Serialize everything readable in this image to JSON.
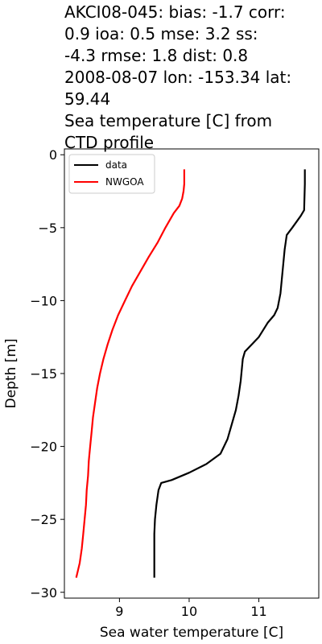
{
  "chart_data": {
    "type": "line",
    "title_lines": [
      "AKCI08-045: bias: -1.7  corr:",
      "0.9  ioa: 0.5  mse: 3.2  ss:",
      "-4.3  rmse: 1.8  dist: 0.8",
      "2008-08-07 lon: -153.34 lat:",
      "59.44",
      "Sea temperature [C] from",
      "CTD profile"
    ],
    "xlabel": "Sea water temperature [C]",
    "ylabel": "Depth [m]",
    "xlim": [
      8.21,
      11.86
    ],
    "ylim": [
      -30.4,
      0.4
    ],
    "xticks": [
      9,
      10,
      11
    ],
    "yticks": [
      0,
      -5,
      -10,
      -15,
      -20,
      -25,
      -30
    ],
    "xtick_labels": [
      "9",
      "10",
      "11"
    ],
    "ytick_labels": [
      "0",
      "−5",
      "−10",
      "−15",
      "−20",
      "−25",
      "−30"
    ],
    "grid": false,
    "legend_position": "top-left",
    "series": [
      {
        "name": "data",
        "color": "#000000",
        "x": [
          11.66,
          11.66,
          11.65,
          11.6,
          11.48,
          11.4,
          11.37,
          11.34,
          11.31,
          11.27,
          11.22,
          11.13,
          11.0,
          10.9,
          10.8,
          10.77,
          10.74,
          10.71,
          10.67,
          10.61,
          10.55,
          10.45,
          10.25,
          10.0,
          9.75,
          9.6,
          9.56,
          9.53,
          9.51,
          9.5,
          9.5,
          9.5
        ],
        "y": [
          -1.0,
          -2.0,
          -3.8,
          -4.2,
          -5.0,
          -5.5,
          -6.5,
          -8.0,
          -9.5,
          -10.5,
          -11.0,
          -11.5,
          -12.5,
          -13.0,
          -13.5,
          -14.0,
          -15.5,
          -16.5,
          -17.5,
          -18.5,
          -19.5,
          -20.5,
          -21.2,
          -21.8,
          -22.3,
          -22.5,
          -23.0,
          -24.0,
          -25.0,
          -26.0,
          -28.0,
          -29.0
        ]
      },
      {
        "name": "NWGOA",
        "color": "#ff0000",
        "x": [
          9.93,
          9.93,
          9.92,
          9.9,
          9.86,
          9.78,
          9.66,
          9.55,
          9.42,
          9.3,
          9.18,
          9.08,
          8.98,
          8.9,
          8.83,
          8.77,
          8.72,
          8.68,
          8.65,
          8.62,
          8.6,
          8.58,
          8.56,
          8.55,
          8.53,
          8.52,
          8.5,
          8.48,
          8.46,
          8.43,
          8.38
        ],
        "y": [
          -1.0,
          -2.0,
          -2.5,
          -3.0,
          -3.5,
          -4.0,
          -5.0,
          -6.0,
          -7.0,
          -8.0,
          -9.0,
          -10.0,
          -11.0,
          -12.0,
          -13.0,
          -14.0,
          -15.0,
          -16.0,
          -17.0,
          -18.0,
          -19.0,
          -20.0,
          -21.0,
          -22.0,
          -23.0,
          -24.0,
          -25.0,
          -26.0,
          -27.0,
          -28.0,
          -29.0
        ]
      }
    ]
  }
}
